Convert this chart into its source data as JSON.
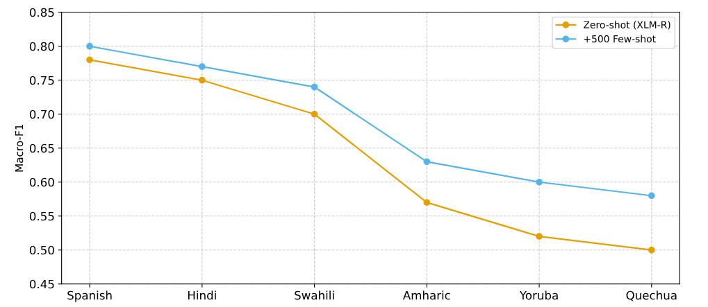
{
  "chart_data": {
    "type": "line",
    "ylabel": "Macro-F1",
    "categories": [
      "Spanish",
      "Hindi",
      "Swahili",
      "Amharic",
      "Yoruba",
      "Quechua"
    ],
    "series": [
      {
        "name": "Zero-shot (XLM-R)",
        "color": "#e69f00",
        "values": [
          0.78,
          0.75,
          0.7,
          0.57,
          0.52,
          0.5
        ]
      },
      {
        "name": "+500 Few-shot",
        "color": "#56b4e9",
        "values": [
          0.8,
          0.77,
          0.74,
          0.63,
          0.6,
          0.58
        ]
      }
    ],
    "ylim": [
      0.45,
      0.85
    ],
    "yticks": [
      {
        "value": 0.45,
        "label": "0.45"
      },
      {
        "value": 0.5,
        "label": "0.50"
      },
      {
        "value": 0.55,
        "label": "0.55"
      },
      {
        "value": 0.6,
        "label": "0.60"
      },
      {
        "value": 0.65,
        "label": "0.65"
      },
      {
        "value": 0.7,
        "label": "0.70"
      },
      {
        "value": 0.75,
        "label": "0.75"
      },
      {
        "value": 0.8,
        "label": "0.80"
      },
      {
        "value": 0.85,
        "label": "0.85"
      }
    ],
    "grid": true,
    "legend": "top right",
    "marker": "circle",
    "line_style": "solid"
  }
}
